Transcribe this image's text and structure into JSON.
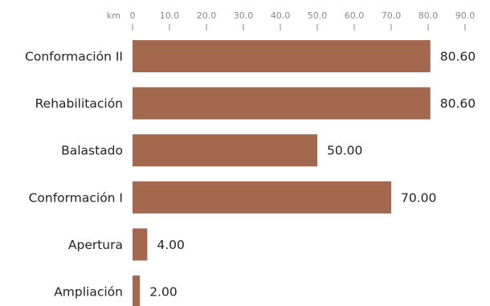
{
  "chart_data": {
    "type": "bar",
    "orientation": "horizontal",
    "unit": "km",
    "categories": [
      "Conformación II",
      "Rehabilitación",
      "Balastado",
      "Conformación I",
      "Apertura",
      "Ampliación"
    ],
    "values": [
      80.6,
      80.6,
      50.0,
      70.0,
      4.0,
      2.0
    ],
    "value_labels": [
      "80.60",
      "80.60",
      "50.00",
      "70.00",
      "4.00",
      "2.00"
    ],
    "xlim": [
      0,
      90
    ],
    "xticks": [
      0,
      10,
      20,
      30,
      40,
      50,
      60,
      70,
      80,
      90
    ],
    "xtick_labels": [
      "0",
      "10.0",
      "20.0",
      "30.0",
      "40.0",
      "50.0",
      "60.0",
      "70.0",
      "80.0",
      "90.0"
    ],
    "axis_position": "top",
    "grid": false,
    "legend": "none",
    "bar_color": "#a4684f"
  }
}
